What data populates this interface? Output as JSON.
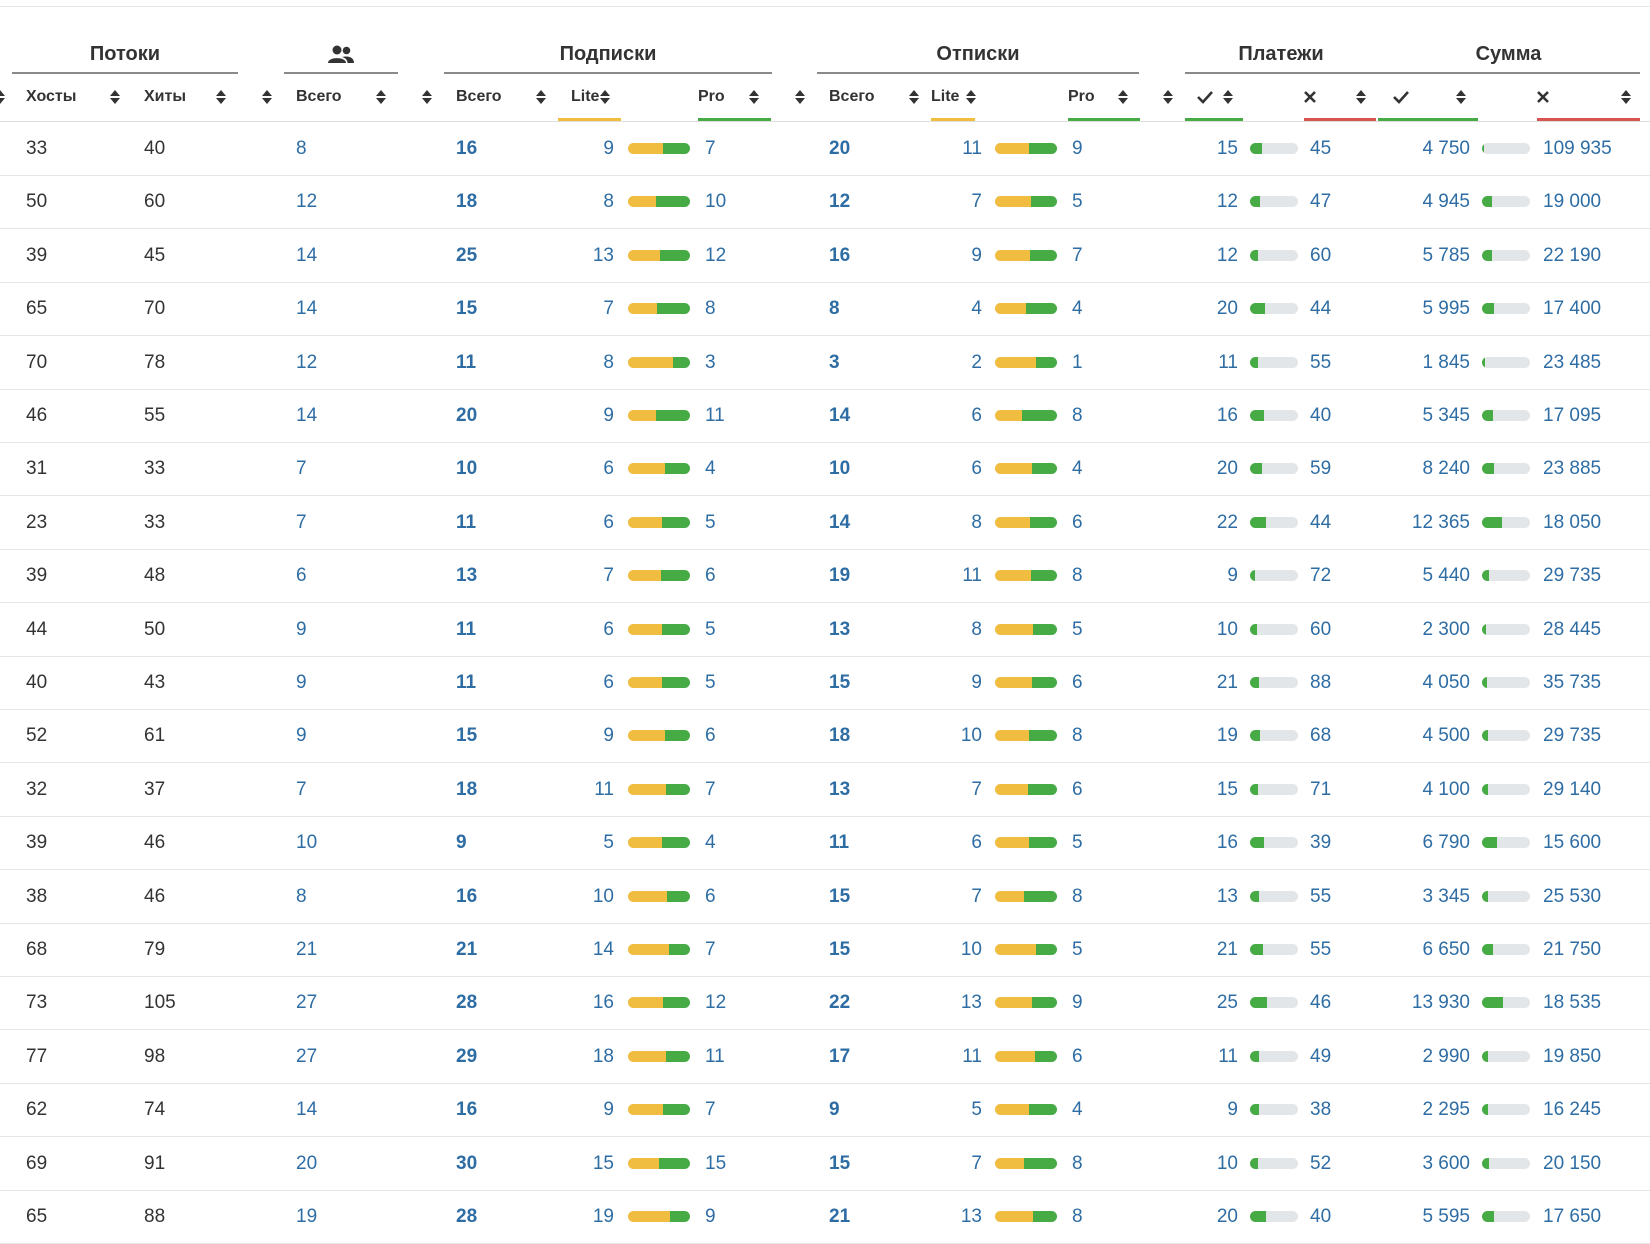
{
  "header": {
    "groups": [
      "Потоки",
      "Подписки",
      "Отписки",
      "Платежи",
      "Сумма"
    ],
    "users_icon": "users-icon",
    "cols": {
      "hosts": "Хосты",
      "hits": "Хиты",
      "total": "Всего",
      "lite": "Lite",
      "pro": "Pro",
      "ok_icon": "check-icon",
      "fail_icon": "cross-icon"
    }
  },
  "colors": {
    "lite": "#f0bd40",
    "pro": "#47ab45",
    "fail": "#d9534f",
    "link": "#2e6da4"
  },
  "rows": [
    {
      "hosts": "33",
      "hits": "40",
      "users": "8",
      "sub_total": "16",
      "sub_lite": "9",
      "sub_pro": "7",
      "uns_total": "20",
      "uns_lite": "11",
      "uns_pro": "9",
      "pay_ok": "15",
      "pay_fail": "45",
      "sum_ok": "4 750",
      "sum_fail": "109 935"
    },
    {
      "hosts": "50",
      "hits": "60",
      "users": "12",
      "sub_total": "18",
      "sub_lite": "8",
      "sub_pro": "10",
      "uns_total": "12",
      "uns_lite": "7",
      "uns_pro": "5",
      "pay_ok": "12",
      "pay_fail": "47",
      "sum_ok": "4 945",
      "sum_fail": "19 000"
    },
    {
      "hosts": "39",
      "hits": "45",
      "users": "14",
      "sub_total": "25",
      "sub_lite": "13",
      "sub_pro": "12",
      "uns_total": "16",
      "uns_lite": "9",
      "uns_pro": "7",
      "pay_ok": "12",
      "pay_fail": "60",
      "sum_ok": "5 785",
      "sum_fail": "22 190"
    },
    {
      "hosts": "65",
      "hits": "70",
      "users": "14",
      "sub_total": "15",
      "sub_lite": "7",
      "sub_pro": "8",
      "uns_total": "8",
      "uns_lite": "4",
      "uns_pro": "4",
      "pay_ok": "20",
      "pay_fail": "44",
      "sum_ok": "5 995",
      "sum_fail": "17 400"
    },
    {
      "hosts": "70",
      "hits": "78",
      "users": "12",
      "sub_total": "11",
      "sub_lite": "8",
      "sub_pro": "3",
      "uns_total": "3",
      "uns_lite": "2",
      "uns_pro": "1",
      "pay_ok": "11",
      "pay_fail": "55",
      "sum_ok": "1 845",
      "sum_fail": "23 485"
    },
    {
      "hosts": "46",
      "hits": "55",
      "users": "14",
      "sub_total": "20",
      "sub_lite": "9",
      "sub_pro": "11",
      "uns_total": "14",
      "uns_lite": "6",
      "uns_pro": "8",
      "pay_ok": "16",
      "pay_fail": "40",
      "sum_ok": "5 345",
      "sum_fail": "17 095"
    },
    {
      "hosts": "31",
      "hits": "33",
      "users": "7",
      "sub_total": "10",
      "sub_lite": "6",
      "sub_pro": "4",
      "uns_total": "10",
      "uns_lite": "6",
      "uns_pro": "4",
      "pay_ok": "20",
      "pay_fail": "59",
      "sum_ok": "8 240",
      "sum_fail": "23 885"
    },
    {
      "hosts": "23",
      "hits": "33",
      "users": "7",
      "sub_total": "11",
      "sub_lite": "6",
      "sub_pro": "5",
      "uns_total": "14",
      "uns_lite": "8",
      "uns_pro": "6",
      "pay_ok": "22",
      "pay_fail": "44",
      "sum_ok": "12 365",
      "sum_fail": "18 050"
    },
    {
      "hosts": "39",
      "hits": "48",
      "users": "6",
      "sub_total": "13",
      "sub_lite": "7",
      "sub_pro": "6",
      "uns_total": "19",
      "uns_lite": "11",
      "uns_pro": "8",
      "pay_ok": "9",
      "pay_fail": "72",
      "sum_ok": "5 440",
      "sum_fail": "29 735"
    },
    {
      "hosts": "44",
      "hits": "50",
      "users": "9",
      "sub_total": "11",
      "sub_lite": "6",
      "sub_pro": "5",
      "uns_total": "13",
      "uns_lite": "8",
      "uns_pro": "5",
      "pay_ok": "10",
      "pay_fail": "60",
      "sum_ok": "2 300",
      "sum_fail": "28 445"
    },
    {
      "hosts": "40",
      "hits": "43",
      "users": "9",
      "sub_total": "11",
      "sub_lite": "6",
      "sub_pro": "5",
      "uns_total": "15",
      "uns_lite": "9",
      "uns_pro": "6",
      "pay_ok": "21",
      "pay_fail": "88",
      "sum_ok": "4 050",
      "sum_fail": "35 735"
    },
    {
      "hosts": "52",
      "hits": "61",
      "users": "9",
      "sub_total": "15",
      "sub_lite": "9",
      "sub_pro": "6",
      "uns_total": "18",
      "uns_lite": "10",
      "uns_pro": "8",
      "pay_ok": "19",
      "pay_fail": "68",
      "sum_ok": "4 500",
      "sum_fail": "29 735"
    },
    {
      "hosts": "32",
      "hits": "37",
      "users": "7",
      "sub_total": "18",
      "sub_lite": "11",
      "sub_pro": "7",
      "uns_total": "13",
      "uns_lite": "7",
      "uns_pro": "6",
      "pay_ok": "15",
      "pay_fail": "71",
      "sum_ok": "4 100",
      "sum_fail": "29 140"
    },
    {
      "hosts": "39",
      "hits": "46",
      "users": "10",
      "sub_total": "9",
      "sub_lite": "5",
      "sub_pro": "4",
      "uns_total": "11",
      "uns_lite": "6",
      "uns_pro": "5",
      "pay_ok": "16",
      "pay_fail": "39",
      "sum_ok": "6 790",
      "sum_fail": "15 600"
    },
    {
      "hosts": "38",
      "hits": "46",
      "users": "8",
      "sub_total": "16",
      "sub_lite": "10",
      "sub_pro": "6",
      "uns_total": "15",
      "uns_lite": "7",
      "uns_pro": "8",
      "pay_ok": "13",
      "pay_fail": "55",
      "sum_ok": "3 345",
      "sum_fail": "25 530"
    },
    {
      "hosts": "68",
      "hits": "79",
      "users": "21",
      "sub_total": "21",
      "sub_lite": "14",
      "sub_pro": "7",
      "uns_total": "15",
      "uns_lite": "10",
      "uns_pro": "5",
      "pay_ok": "21",
      "pay_fail": "55",
      "sum_ok": "6 650",
      "sum_fail": "21 750"
    },
    {
      "hosts": "73",
      "hits": "105",
      "users": "27",
      "sub_total": "28",
      "sub_lite": "16",
      "sub_pro": "12",
      "uns_total": "22",
      "uns_lite": "13",
      "uns_pro": "9",
      "pay_ok": "25",
      "pay_fail": "46",
      "sum_ok": "13 930",
      "sum_fail": "18 535"
    },
    {
      "hosts": "77",
      "hits": "98",
      "users": "27",
      "sub_total": "29",
      "sub_lite": "18",
      "sub_pro": "11",
      "uns_total": "17",
      "uns_lite": "11",
      "uns_pro": "6",
      "pay_ok": "11",
      "pay_fail": "49",
      "sum_ok": "2 990",
      "sum_fail": "19 850"
    },
    {
      "hosts": "62",
      "hits": "74",
      "users": "14",
      "sub_total": "16",
      "sub_lite": "9",
      "sub_pro": "7",
      "uns_total": "9",
      "uns_lite": "5",
      "uns_pro": "4",
      "pay_ok": "9",
      "pay_fail": "38",
      "sum_ok": "2 295",
      "sum_fail": "16 245"
    },
    {
      "hosts": "69",
      "hits": "91",
      "users": "20",
      "sub_total": "30",
      "sub_lite": "15",
      "sub_pro": "15",
      "uns_total": "15",
      "uns_lite": "7",
      "uns_pro": "8",
      "pay_ok": "10",
      "pay_fail": "52",
      "sum_ok": "3 600",
      "sum_fail": "20 150"
    },
    {
      "hosts": "65",
      "hits": "88",
      "users": "19",
      "sub_total": "28",
      "sub_lite": "19",
      "sub_pro": "9",
      "uns_total": "21",
      "uns_lite": "13",
      "uns_pro": "8",
      "pay_ok": "20",
      "pay_fail": "40",
      "sum_ok": "5 595",
      "sum_fail": "17 650"
    }
  ]
}
